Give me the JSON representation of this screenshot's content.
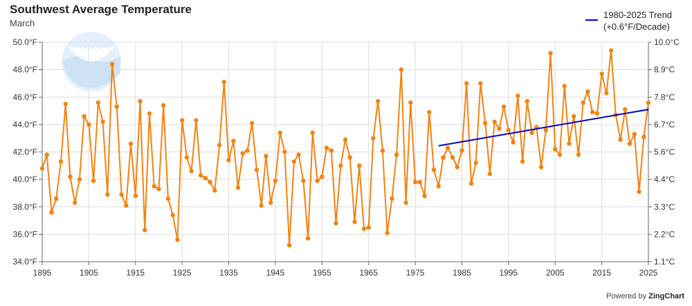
{
  "header": {
    "title": "Southwest Average Temperature",
    "subtitle": "March"
  },
  "legend": {
    "line1": "1980-2025 Trend",
    "line2": "(+0.6°F/Decade)"
  },
  "credit": {
    "prefix": "Powered by ",
    "brand": "ZingChart"
  },
  "logo": {
    "text": "NOAA"
  },
  "colors": {
    "series": "#f5820f",
    "trend": "#0000cc",
    "grid": "#dddddd",
    "axis": "#666666"
  },
  "chart_data": {
    "type": "line",
    "title": "Southwest Average Temperature",
    "subtitle": "March",
    "xlim": [
      1895,
      2025
    ],
    "ylim": [
      34.0,
      50.0
    ],
    "x_ticks": [
      "1895",
      "1905",
      "1915",
      "1925",
      "1935",
      "1945",
      "1955",
      "1965",
      "1975",
      "1985",
      "1995",
      "2005",
      "2015",
      "2025"
    ],
    "y_ticks_left": [
      "34.0°F",
      "36.0°F",
      "38.0°F",
      "40.0°F",
      "42.0°F",
      "44.0°F",
      "46.0°F",
      "48.0°F",
      "50.0°F"
    ],
    "y_ticks_right": [
      "1.1°C",
      "2.2°C",
      "3.3°C",
      "4.4°C",
      "5.6°C",
      "6.7°C",
      "7.8°C",
      "8.9°C",
      "10.0°C"
    ],
    "grid": true,
    "legend_position": "top-right",
    "series": [
      {
        "type": "line-with-markers",
        "x_start": 1895,
        "values": [
          40.8,
          41.8,
          37.6,
          38.6,
          41.3,
          45.5,
          40.2,
          38.3,
          40.0,
          44.6,
          44.0,
          39.9,
          45.6,
          44.2,
          38.9,
          48.4,
          45.3,
          38.9,
          38.1,
          42.6,
          38.8,
          45.7,
          36.3,
          44.8,
          39.5,
          39.3,
          45.4,
          38.6,
          37.4,
          35.6,
          44.3,
          41.6,
          40.6,
          44.3,
          40.3,
          40.1,
          39.8,
          39.2,
          42.5,
          47.1,
          41.4,
          42.8,
          39.4,
          41.9,
          42.1,
          44.1,
          40.7,
          38.1,
          41.7,
          38.3,
          39.9,
          43.4,
          42.0,
          35.2,
          41.3,
          41.8,
          39.9,
          35.7,
          43.4,
          39.9,
          40.2,
          42.3,
          42.1,
          36.8,
          41.0,
          42.9,
          41.6,
          36.9,
          41.0,
          36.4,
          36.5,
          43.0,
          45.7,
          42.1,
          36.1,
          38.6,
          41.8,
          48.0,
          38.3,
          45.6,
          39.8,
          39.8,
          38.8,
          44.9,
          40.7,
          39.5,
          41.6,
          42.3,
          41.6,
          40.9,
          42.1,
          47.0,
          39.7,
          41.2,
          47.0,
          44.1,
          40.4,
          44.2,
          43.7,
          45.3,
          43.6,
          42.7,
          46.1,
          41.3,
          45.7,
          43.4,
          43.8,
          40.9,
          43.6,
          49.2,
          42.2,
          41.8,
          46.8,
          42.6,
          44.6,
          41.8,
          45.6,
          46.4,
          44.9,
          44.8,
          47.7,
          46.3,
          49.4,
          44.7,
          42.9,
          45.1,
          42.6,
          43.3,
          39.1,
          43.1,
          45.6
        ]
      },
      {
        "name": "1980-2025 Trend",
        "type": "trend",
        "x": [
          1980,
          2025
        ],
        "y": [
          42.45,
          45.1
        ]
      }
    ]
  }
}
